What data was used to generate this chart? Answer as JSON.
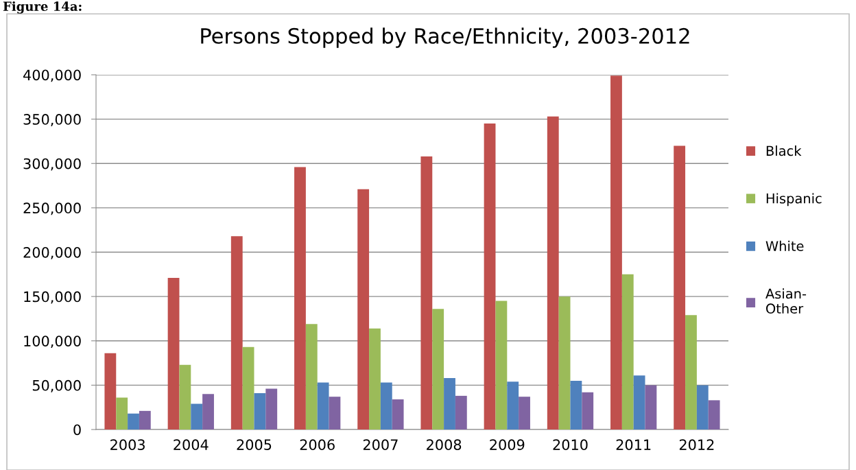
{
  "chart_data": {
    "type": "bar",
    "title": "Persons Stopped by Race/Ethnicity, 2003-2012",
    "annotations": [
      "Figure 14a:"
    ],
    "categories": [
      "2003",
      "2004",
      "2005",
      "2006",
      "2007",
      "2008",
      "2009",
      "2010",
      "2011",
      "2012"
    ],
    "series": [
      {
        "name": "Black",
        "color": "#c0504d",
        "values": [
          86000,
          171000,
          218000,
          296000,
          271000,
          308000,
          345000,
          353000,
          399000,
          320000
        ]
      },
      {
        "name": "Hispanic",
        "color": "#9bbb59",
        "values": [
          36000,
          73000,
          93000,
          119000,
          114000,
          136000,
          145000,
          150000,
          175000,
          129000
        ]
      },
      {
        "name": "White",
        "color": "#4f81bd",
        "values": [
          18000,
          29000,
          41000,
          53000,
          53000,
          58000,
          54000,
          55000,
          61000,
          50000
        ]
      },
      {
        "name": "Asian-\nOther",
        "color": "#8064a2",
        "values": [
          21000,
          40000,
          46000,
          37000,
          34000,
          38000,
          37000,
          42000,
          50000,
          33000
        ]
      }
    ],
    "ylim": [
      0,
      400000
    ],
    "yticks": [
      {
        "value": 0,
        "label": "0"
      },
      {
        "value": 50000,
        "label": "50,000"
      },
      {
        "value": 100000,
        "label": "100,000"
      },
      {
        "value": 150000,
        "label": "150,000"
      },
      {
        "value": 200000,
        "label": "200,000"
      },
      {
        "value": 250000,
        "label": "250,000"
      },
      {
        "value": 300000,
        "label": "300,000"
      },
      {
        "value": 350000,
        "label": "350,000"
      },
      {
        "value": 400000,
        "label": "400,000"
      }
    ],
    "grid": "y",
    "legend": "right"
  }
}
